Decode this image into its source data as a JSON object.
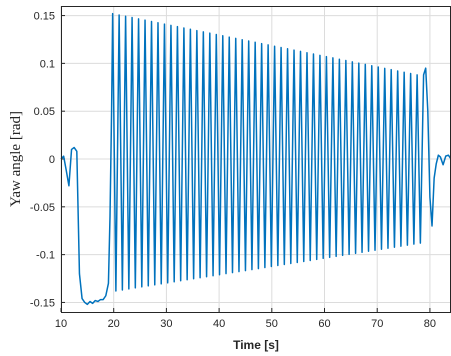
{
  "chart_data": {
    "type": "line",
    "title": "",
    "xlabel": "Time [s]",
    "ylabel": "Yaw angle [rad]",
    "xlim": [
      10,
      84
    ],
    "ylim": [
      -0.16,
      0.16
    ],
    "xticks": [
      10,
      20,
      30,
      40,
      50,
      60,
      70,
      80
    ],
    "xtick_labels": [
      "10",
      "20",
      "30",
      "40",
      "50",
      "60",
      "70",
      "80"
    ],
    "yticks": [
      -0.15,
      -0.1,
      -0.05,
      0,
      0.05,
      0.1,
      0.15
    ],
    "ytick_labels": [
      "-0.15",
      "-0.1",
      "-0.05",
      "0",
      "0.05",
      "0.1",
      "0.15"
    ],
    "grid": true,
    "colors": {
      "series": "#0072BD",
      "axes": "#262626",
      "grid": "#dcdcdc"
    },
    "series": [
      {
        "description_of_pattern": "",
        "x": [
          10,
          10.5,
          11,
          11.5,
          12,
          12.5,
          13,
          13.5,
          14,
          14.5,
          15,
          15.5,
          16,
          16.5,
          17,
          17.5,
          18,
          18.5,
          19,
          19.3,
          19.6,
          19.8
        ],
        "y": [
          0.0,
          0.003,
          -0.012,
          -0.028,
          0.01,
          0.012,
          0.008,
          -0.12,
          -0.146,
          -0.15,
          -0.152,
          -0.149,
          -0.151,
          -0.148,
          -0.149,
          -0.147,
          -0.147,
          -0.143,
          -0.13,
          -0.06,
          0.05,
          0.152
        ],
        "oscillation": {
          "x_start": 19.8,
          "x_end": 78.8,
          "cycles": 48,
          "peak_start": 0.152,
          "peak_end": 0.088,
          "trough_start": -0.138,
          "trough_end": -0.088
        },
        "tail_x": [
          78.8,
          79.2,
          79.6,
          80.0,
          80.4,
          80.8,
          81.2,
          81.6,
          82.0,
          82.5,
          83.0,
          83.5,
          84.0
        ],
        "tail_y": [
          0.088,
          0.095,
          0.05,
          -0.04,
          -0.07,
          -0.02,
          -0.005,
          0.004,
          0.002,
          -0.006,
          0.003,
          0.004,
          0.0
        ]
      }
    ]
  }
}
